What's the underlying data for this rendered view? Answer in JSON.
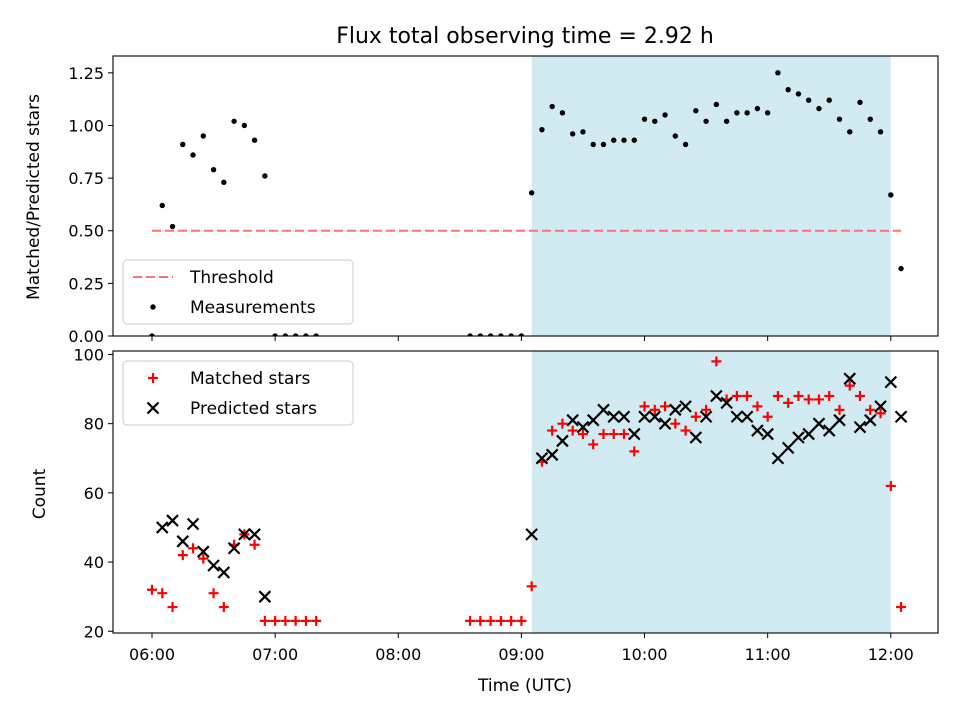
{
  "chart_data": [
    {
      "type": "scatter",
      "title": "Flux total observing time = 2.92 h",
      "ylabel": "Matched/Predicted stars",
      "xlabel": "",
      "xlim": [
        "05:41",
        "12:23"
      ],
      "ylim": [
        0,
        1.33
      ],
      "yticks": [
        "0.00",
        "0.25",
        "0.50",
        "0.75",
        "1.00",
        "1.25"
      ],
      "shaded_interval": [
        "09:05",
        "12:00"
      ],
      "shaded_color": "#add8e6",
      "threshold": {
        "name": "Threshold",
        "value": 0.5,
        "x_range": [
          "06:00",
          "12:05"
        ],
        "color": "#ff7070"
      },
      "legend": {
        "placement": "lower-left",
        "entries": [
          "Threshold",
          "Measurements"
        ]
      },
      "series": [
        {
          "name": "Measurements",
          "color": "#000000",
          "marker": "dot",
          "points": [
            [
              "06:00",
              0.0
            ],
            [
              "06:05",
              0.62
            ],
            [
              "06:10",
              0.52
            ],
            [
              "06:15",
              0.91
            ],
            [
              "06:20",
              0.86
            ],
            [
              "06:25",
              0.95
            ],
            [
              "06:30",
              0.79
            ],
            [
              "06:35",
              0.73
            ],
            [
              "06:40",
              1.02
            ],
            [
              "06:45",
              1.0
            ],
            [
              "06:50",
              0.93
            ],
            [
              "06:55",
              0.76
            ],
            [
              "07:00",
              0.0
            ],
            [
              "07:05",
              0.0
            ],
            [
              "07:10",
              0.0
            ],
            [
              "07:15",
              0.0
            ],
            [
              "07:20",
              0.0
            ],
            [
              "08:35",
              0.0
            ],
            [
              "08:40",
              0.0
            ],
            [
              "08:45",
              0.0
            ],
            [
              "08:50",
              0.0
            ],
            [
              "08:55",
              0.0
            ],
            [
              "09:00",
              0.0
            ],
            [
              "09:05",
              0.68
            ],
            [
              "09:10",
              0.98
            ],
            [
              "09:15",
              1.09
            ],
            [
              "09:20",
              1.06
            ],
            [
              "09:25",
              0.96
            ],
            [
              "09:30",
              0.97
            ],
            [
              "09:35",
              0.91
            ],
            [
              "09:40",
              0.91
            ],
            [
              "09:45",
              0.93
            ],
            [
              "09:50",
              0.93
            ],
            [
              "09:55",
              0.93
            ],
            [
              "10:00",
              1.03
            ],
            [
              "10:05",
              1.02
            ],
            [
              "10:10",
              1.05
            ],
            [
              "10:15",
              0.95
            ],
            [
              "10:20",
              0.91
            ],
            [
              "10:25",
              1.07
            ],
            [
              "10:30",
              1.02
            ],
            [
              "10:35",
              1.1
            ],
            [
              "10:40",
              1.02
            ],
            [
              "10:45",
              1.06
            ],
            [
              "10:50",
              1.06
            ],
            [
              "10:55",
              1.08
            ],
            [
              "11:00",
              1.06
            ],
            [
              "11:05",
              1.25
            ],
            [
              "11:10",
              1.17
            ],
            [
              "11:15",
              1.15
            ],
            [
              "11:20",
              1.12
            ],
            [
              "11:25",
              1.08
            ],
            [
              "11:30",
              1.12
            ],
            [
              "11:35",
              1.03
            ],
            [
              "11:40",
              0.97
            ],
            [
              "11:45",
              1.11
            ],
            [
              "11:50",
              1.03
            ],
            [
              "11:55",
              0.97
            ],
            [
              "12:00",
              0.67
            ],
            [
              "12:05",
              0.32
            ]
          ]
        }
      ]
    },
    {
      "type": "scatter",
      "title": "",
      "ylabel": "Count",
      "xlabel": "Time (UTC)",
      "xlim": [
        "05:41",
        "12:23"
      ],
      "ylim": [
        19.5,
        101
      ],
      "yticks": [
        "20",
        "40",
        "60",
        "80",
        "100"
      ],
      "xticks": [
        "06:00",
        "07:00",
        "08:00",
        "09:00",
        "10:00",
        "11:00",
        "12:00"
      ],
      "shaded_interval": [
        "09:05",
        "12:00"
      ],
      "shaded_color": "#add8e6",
      "legend": {
        "placement": "top-left",
        "entries": [
          "Matched stars",
          "Predicted stars"
        ]
      },
      "series": [
        {
          "name": "Matched stars",
          "color": "#ff0000",
          "marker": "plus",
          "points": [
            [
              "06:00",
              32
            ],
            [
              "06:05",
              31
            ],
            [
              "06:10",
              27
            ],
            [
              "06:15",
              42
            ],
            [
              "06:20",
              44
            ],
            [
              "06:25",
              41
            ],
            [
              "06:30",
              31
            ],
            [
              "06:35",
              27
            ],
            [
              "06:40",
              45
            ],
            [
              "06:45",
              48
            ],
            [
              "06:50",
              45
            ],
            [
              "06:55",
              23
            ],
            [
              "07:00",
              23
            ],
            [
              "07:05",
              23
            ],
            [
              "07:10",
              23
            ],
            [
              "07:15",
              23
            ],
            [
              "07:20",
              23
            ],
            [
              "08:35",
              23
            ],
            [
              "08:40",
              23
            ],
            [
              "08:45",
              23
            ],
            [
              "08:50",
              23
            ],
            [
              "08:55",
              23
            ],
            [
              "09:00",
              23
            ],
            [
              "09:05",
              33
            ],
            [
              "09:10",
              69
            ],
            [
              "09:15",
              78
            ],
            [
              "09:20",
              80
            ],
            [
              "09:25",
              78
            ],
            [
              "09:30",
              77
            ],
            [
              "09:35",
              74
            ],
            [
              "09:40",
              77
            ],
            [
              "09:45",
              77
            ],
            [
              "09:50",
              77
            ],
            [
              "09:55",
              72
            ],
            [
              "10:00",
              85
            ],
            [
              "10:05",
              84
            ],
            [
              "10:10",
              85
            ],
            [
              "10:15",
              80
            ],
            [
              "10:20",
              78
            ],
            [
              "10:25",
              82
            ],
            [
              "10:30",
              84
            ],
            [
              "10:35",
              98
            ],
            [
              "10:40",
              87
            ],
            [
              "10:45",
              88
            ],
            [
              "10:50",
              88
            ],
            [
              "10:55",
              85
            ],
            [
              "11:00",
              82
            ],
            [
              "11:05",
              88
            ],
            [
              "11:10",
              86
            ],
            [
              "11:15",
              88
            ],
            [
              "11:20",
              87
            ],
            [
              "11:25",
              87
            ],
            [
              "11:30",
              88
            ],
            [
              "11:35",
              84
            ],
            [
              "11:40",
              91
            ],
            [
              "11:45",
              88
            ],
            [
              "11:50",
              84
            ],
            [
              "11:55",
              83
            ],
            [
              "12:00",
              62
            ],
            [
              "12:05",
              27
            ]
          ]
        },
        {
          "name": "Predicted stars",
          "color": "#000000",
          "marker": "x",
          "points": [
            [
              "06:05",
              50
            ],
            [
              "06:10",
              52
            ],
            [
              "06:15",
              46
            ],
            [
              "06:20",
              51
            ],
            [
              "06:25",
              43
            ],
            [
              "06:30",
              39
            ],
            [
              "06:35",
              37
            ],
            [
              "06:40",
              44
            ],
            [
              "06:45",
              48
            ],
            [
              "06:50",
              48
            ],
            [
              "06:55",
              30
            ],
            [
              "09:05",
              48
            ],
            [
              "09:10",
              70
            ],
            [
              "09:15",
              71
            ],
            [
              "09:20",
              75
            ],
            [
              "09:25",
              81
            ],
            [
              "09:30",
              79
            ],
            [
              "09:35",
              81
            ],
            [
              "09:40",
              84
            ],
            [
              "09:45",
              82
            ],
            [
              "09:50",
              82
            ],
            [
              "09:55",
              77
            ],
            [
              "10:00",
              82
            ],
            [
              "10:05",
              82
            ],
            [
              "10:10",
              80
            ],
            [
              "10:15",
              84
            ],
            [
              "10:20",
              85
            ],
            [
              "10:25",
              76
            ],
            [
              "10:30",
              82
            ],
            [
              "10:35",
              88
            ],
            [
              "10:40",
              86
            ],
            [
              "10:45",
              82
            ],
            [
              "10:50",
              82
            ],
            [
              "10:55",
              78
            ],
            [
              "11:00",
              77
            ],
            [
              "11:05",
              70
            ],
            [
              "11:10",
              73
            ],
            [
              "11:15",
              76
            ],
            [
              "11:20",
              77
            ],
            [
              "11:25",
              80
            ],
            [
              "11:30",
              78
            ],
            [
              "11:35",
              81
            ],
            [
              "11:40",
              93
            ],
            [
              "11:45",
              79
            ],
            [
              "11:50",
              81
            ],
            [
              "11:55",
              85
            ],
            [
              "12:00",
              92
            ],
            [
              "12:05",
              82
            ]
          ]
        }
      ]
    }
  ]
}
